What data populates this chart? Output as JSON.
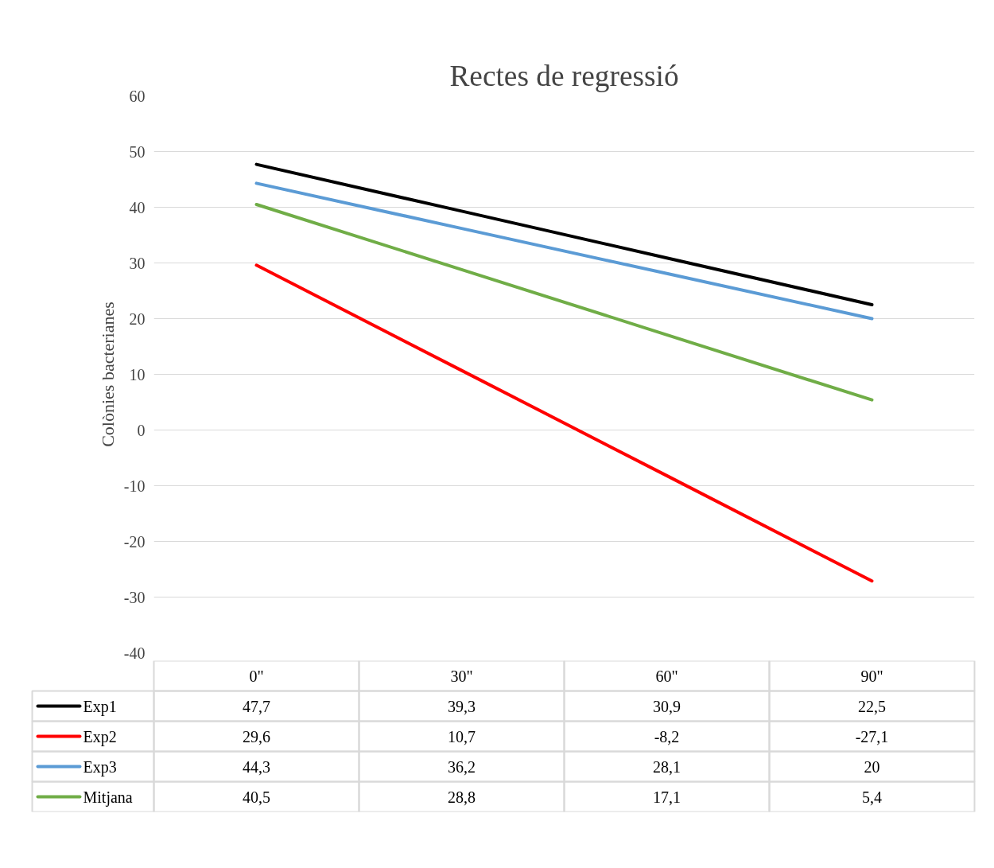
{
  "chart_data": {
    "type": "line",
    "title": "Rectes de regressió",
    "ylabel": "Colònies bacterianes",
    "categories": [
      "0\"",
      "30\"",
      "60\"",
      "90\""
    ],
    "ylim": [
      -40,
      60
    ],
    "yticks": [
      -40,
      -30,
      -20,
      -10,
      0,
      10,
      20,
      30,
      40,
      50,
      60
    ],
    "grid": "y",
    "legend": "bottom",
    "marker": "none",
    "line_style": "solid",
    "series": [
      {
        "name": "Exp1",
        "color": "#000000",
        "values": [
          47.7,
          39.3,
          30.9,
          22.5
        ],
        "value_labels": [
          "47,7",
          "39,3",
          "30,9",
          "22,5"
        ]
      },
      {
        "name": "Exp2",
        "color": "#ff0000",
        "values": [
          29.6,
          10.7,
          -8.2,
          -27.1
        ],
        "value_labels": [
          "29,6",
          "10,7",
          "-8,2",
          "-27,1"
        ]
      },
      {
        "name": "Exp3",
        "color": "#5b9bd5",
        "values": [
          44.3,
          36.2,
          28.1,
          20
        ],
        "value_labels": [
          "44,3",
          "36,2",
          "28,1",
          "20"
        ]
      },
      {
        "name": "Mitjana",
        "color": "#70ad47",
        "values": [
          40.5,
          28.8,
          17.1,
          5.4
        ],
        "value_labels": [
          "40,5",
          "28,8",
          "17,1",
          "5,4"
        ]
      }
    ]
  }
}
